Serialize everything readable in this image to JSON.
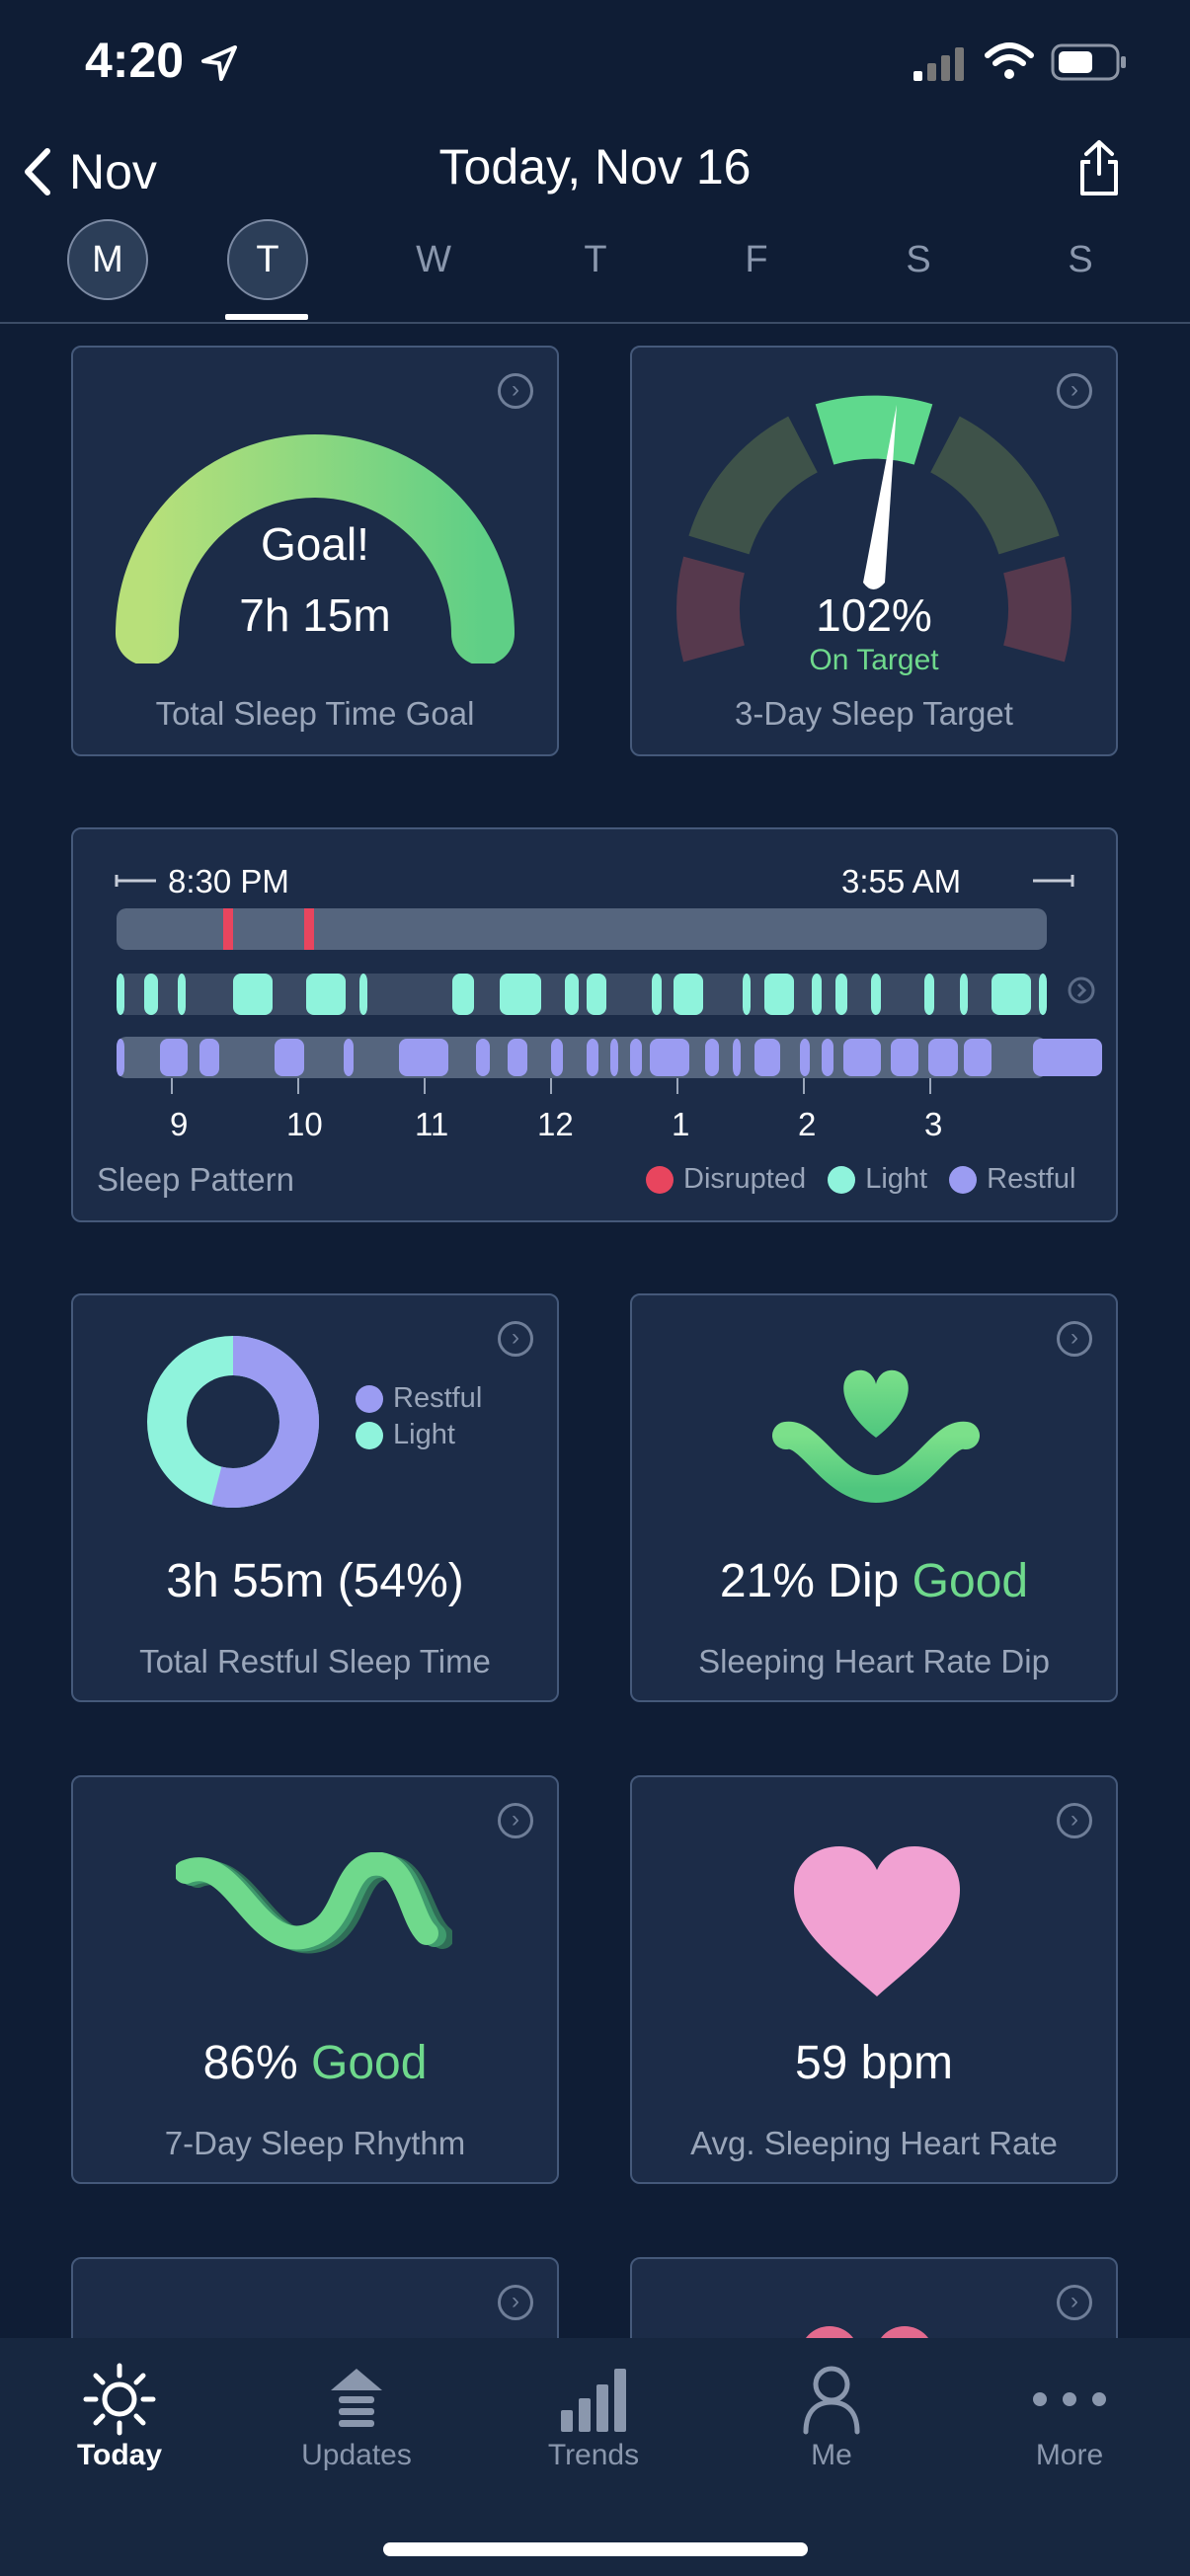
{
  "status": {
    "time": "4:20"
  },
  "header": {
    "back_label": "Nov",
    "title": "Today, Nov 16"
  },
  "days": [
    {
      "label": "M"
    },
    {
      "label": "T"
    },
    {
      "label": "W"
    },
    {
      "label": "T"
    },
    {
      "label": "F"
    },
    {
      "label": "S"
    },
    {
      "label": "S"
    }
  ],
  "cards": {
    "sleep_goal": {
      "line1": "Goal!",
      "line2": "7h 15m",
      "label": "Total Sleep Time Goal"
    },
    "sleep_target": {
      "value": "102%",
      "status": "On Target",
      "label": "3-Day Sleep Target",
      "percent": 102
    },
    "pattern": {
      "start": "8:30 PM",
      "end": "3:55 AM",
      "label": "Sleep Pattern",
      "hours": [
        "9",
        "10",
        "11",
        "12",
        "1",
        "2",
        "3"
      ],
      "legend": {
        "disrupted": "Disrupted",
        "light": "Light",
        "restful": "Restful"
      }
    },
    "restful": {
      "value": "3h 55m (54%)",
      "label": "Total Restful Sleep Time",
      "legend_restful": "Restful",
      "legend_light": "Light",
      "restful_fraction": 0.54
    },
    "hr_dip": {
      "value": "21% Dip",
      "rating": "Good",
      "label": "Sleeping Heart Rate Dip"
    },
    "rhythm": {
      "value": "86%",
      "rating": "Good",
      "label": "7-Day Sleep Rhythm"
    },
    "heart_rate": {
      "value": "59 bpm",
      "label": "Avg. Sleeping Heart Rate"
    }
  },
  "colors": {
    "disrupted": "#e8455e",
    "light": "#8ff3dc",
    "restful": "#9b9cf2",
    "good": "#6fd98c"
  },
  "tabbar": {
    "today": "Today",
    "updates": "Updates",
    "trends": "Trends",
    "me": "Me",
    "more": "More"
  }
}
